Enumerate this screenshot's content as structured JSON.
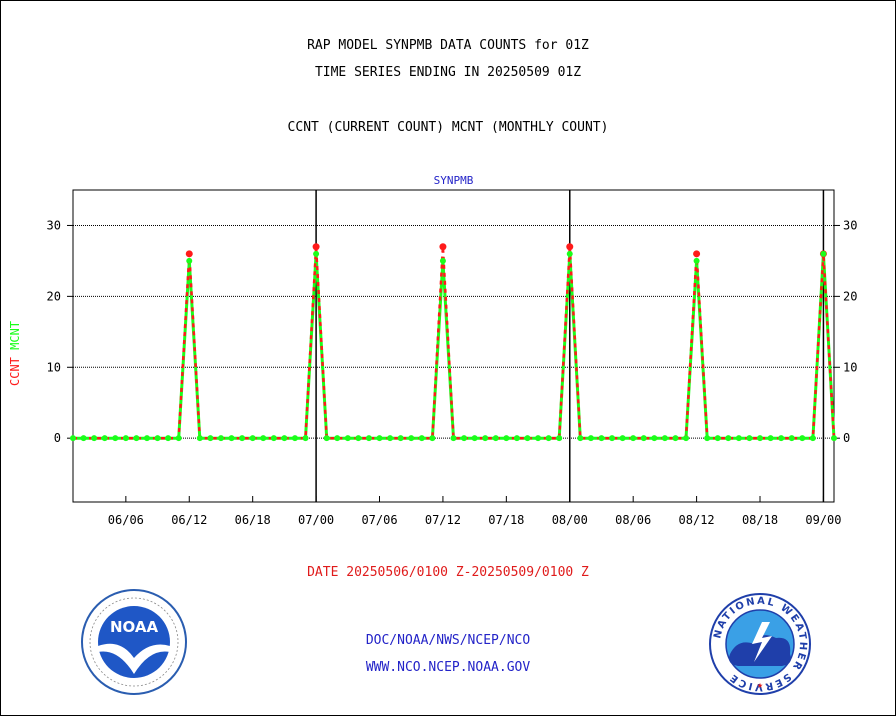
{
  "header": {
    "line1": "RAP MODEL SYNPMB DATA COUNTS for 01Z",
    "line2": "TIME SERIES ENDING IN 20250509 01Z",
    "line3": "CCNT (CURRENT COUNT) MCNT (MONTHLY COUNT)"
  },
  "footer": {
    "date_range": "DATE 20250506/0100 Z-20250509/0100 Z",
    "org_path": "DOC/NOAA/NWS/NCEP/NCO",
    "website": "WWW.NCO.NCEP.NOAA.GOV"
  },
  "logos": {
    "noaa_label": "NOAA",
    "nws_ring_text": "NATIONAL WEATHER SERVICE"
  },
  "colors": {
    "ccnt": "#ff1a1a",
    "mcnt": "#1aff1a",
    "axis_title": "#2323c8",
    "date_text": "#e01b1b"
  },
  "chart_data": {
    "type": "line",
    "title": "SYNPMB",
    "ylabel_series": [
      "CCNT",
      "MCNT"
    ],
    "ylim": [
      -9,
      35
    ],
    "yticks": [
      0,
      10,
      20,
      30
    ],
    "grid": true,
    "day_boundaries": [
      "07/00",
      "08/00",
      "09/00"
    ],
    "xtick_labels": [
      "06/06",
      "06/12",
      "06/18",
      "07/00",
      "07/06",
      "07/12",
      "07/18",
      "08/00",
      "08/06",
      "08/12",
      "08/18",
      "09/00"
    ],
    "x_start": "06/01",
    "x_end": "09/01",
    "series": [
      {
        "name": "CCNT",
        "points": [
          [
            "06/01",
            0
          ],
          [
            "06/11",
            0
          ],
          [
            "06/12",
            26
          ],
          [
            "06/13",
            0
          ],
          [
            "06/23",
            0
          ],
          [
            "07/00",
            27
          ],
          [
            "07/01",
            0
          ],
          [
            "07/11",
            0
          ],
          [
            "07/12",
            27
          ],
          [
            "07/13",
            0
          ],
          [
            "07/23",
            0
          ],
          [
            "08/00",
            27
          ],
          [
            "08/01",
            0
          ],
          [
            "08/11",
            0
          ],
          [
            "08/12",
            26
          ],
          [
            "08/13",
            0
          ],
          [
            "08/23",
            0
          ],
          [
            "09/00",
            26
          ],
          [
            "09/01",
            0
          ]
        ]
      },
      {
        "name": "MCNT",
        "points": [
          [
            "06/01",
            0
          ],
          [
            "06/11",
            0
          ],
          [
            "06/12",
            25
          ],
          [
            "06/13",
            0
          ],
          [
            "06/23",
            0
          ],
          [
            "07/00",
            26
          ],
          [
            "07/01",
            0
          ],
          [
            "07/11",
            0
          ],
          [
            "07/12",
            25
          ],
          [
            "07/13",
            0
          ],
          [
            "07/23",
            0
          ],
          [
            "08/00",
            26
          ],
          [
            "08/01",
            0
          ],
          [
            "08/11",
            0
          ],
          [
            "08/12",
            25
          ],
          [
            "08/13",
            0
          ],
          [
            "08/23",
            0
          ],
          [
            "09/00",
            26
          ],
          [
            "09/01",
            0
          ]
        ]
      }
    ]
  }
}
